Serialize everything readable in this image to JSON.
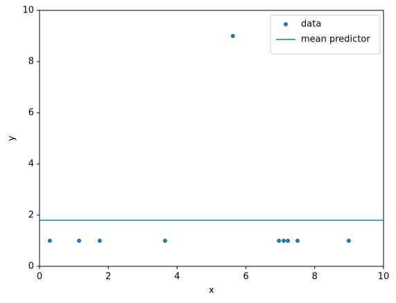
{
  "chart_data": {
    "type": "scatter",
    "xlabel": "x",
    "ylabel": "y",
    "xlim": [
      0,
      10
    ],
    "ylim": [
      0,
      10
    ],
    "xticks": [
      0,
      2,
      4,
      6,
      8,
      10
    ],
    "yticks": [
      0,
      2,
      4,
      6,
      8,
      10
    ],
    "grid": false,
    "legend": "upper right",
    "series": [
      {
        "name": "data",
        "type": "scatter",
        "color": "#1f77b4",
        "x": [
          0.3,
          1.15,
          1.75,
          3.65,
          5.62,
          6.96,
          7.1,
          7.22,
          7.5,
          8.99
        ],
        "values": [
          1,
          1,
          1,
          1,
          9,
          1,
          1,
          1,
          1,
          1
        ]
      },
      {
        "name": "mean predictor",
        "type": "line",
        "color": "#1f77b4",
        "x": [
          0,
          10
        ],
        "values": [
          1.8,
          1.8
        ]
      }
    ]
  }
}
